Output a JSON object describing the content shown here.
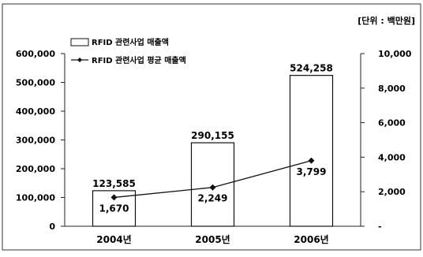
{
  "unit_label": "[단위 : 백만원]",
  "chart_data": {
    "type": "bar",
    "categories": [
      "2004년",
      "2005년",
      "2006년"
    ],
    "series": [
      {
        "name": "RFID 관련사업 매출액",
        "type": "bar",
        "axis": "left",
        "values": [
          123585,
          290155,
          524258
        ],
        "labels": [
          "123,585",
          "290,155",
          "524,258"
        ]
      },
      {
        "name": "RFID 관련사업 평균 매출액",
        "type": "line",
        "axis": "right",
        "values": [
          1670,
          2249,
          3799
        ],
        "labels": [
          "1,670",
          "2,249",
          "3,799"
        ]
      }
    ],
    "left_axis": {
      "ylim": [
        0,
        600000
      ],
      "ticks": [
        0,
        100000,
        200000,
        300000,
        400000,
        500000,
        600000
      ],
      "tick_labels": [
        "0",
        "100,000",
        "200,000",
        "300,000",
        "400,000",
        "500,000",
        "600,000"
      ]
    },
    "right_axis": {
      "ylim": [
        0,
        10000
      ],
      "ticks": [
        0,
        2000,
        4000,
        6000,
        8000,
        10000
      ],
      "tick_labels": [
        "-",
        "2,000",
        "4,000",
        "6,000",
        "8,000",
        "10,000"
      ]
    },
    "grid": false,
    "legend_position": "top-left"
  }
}
